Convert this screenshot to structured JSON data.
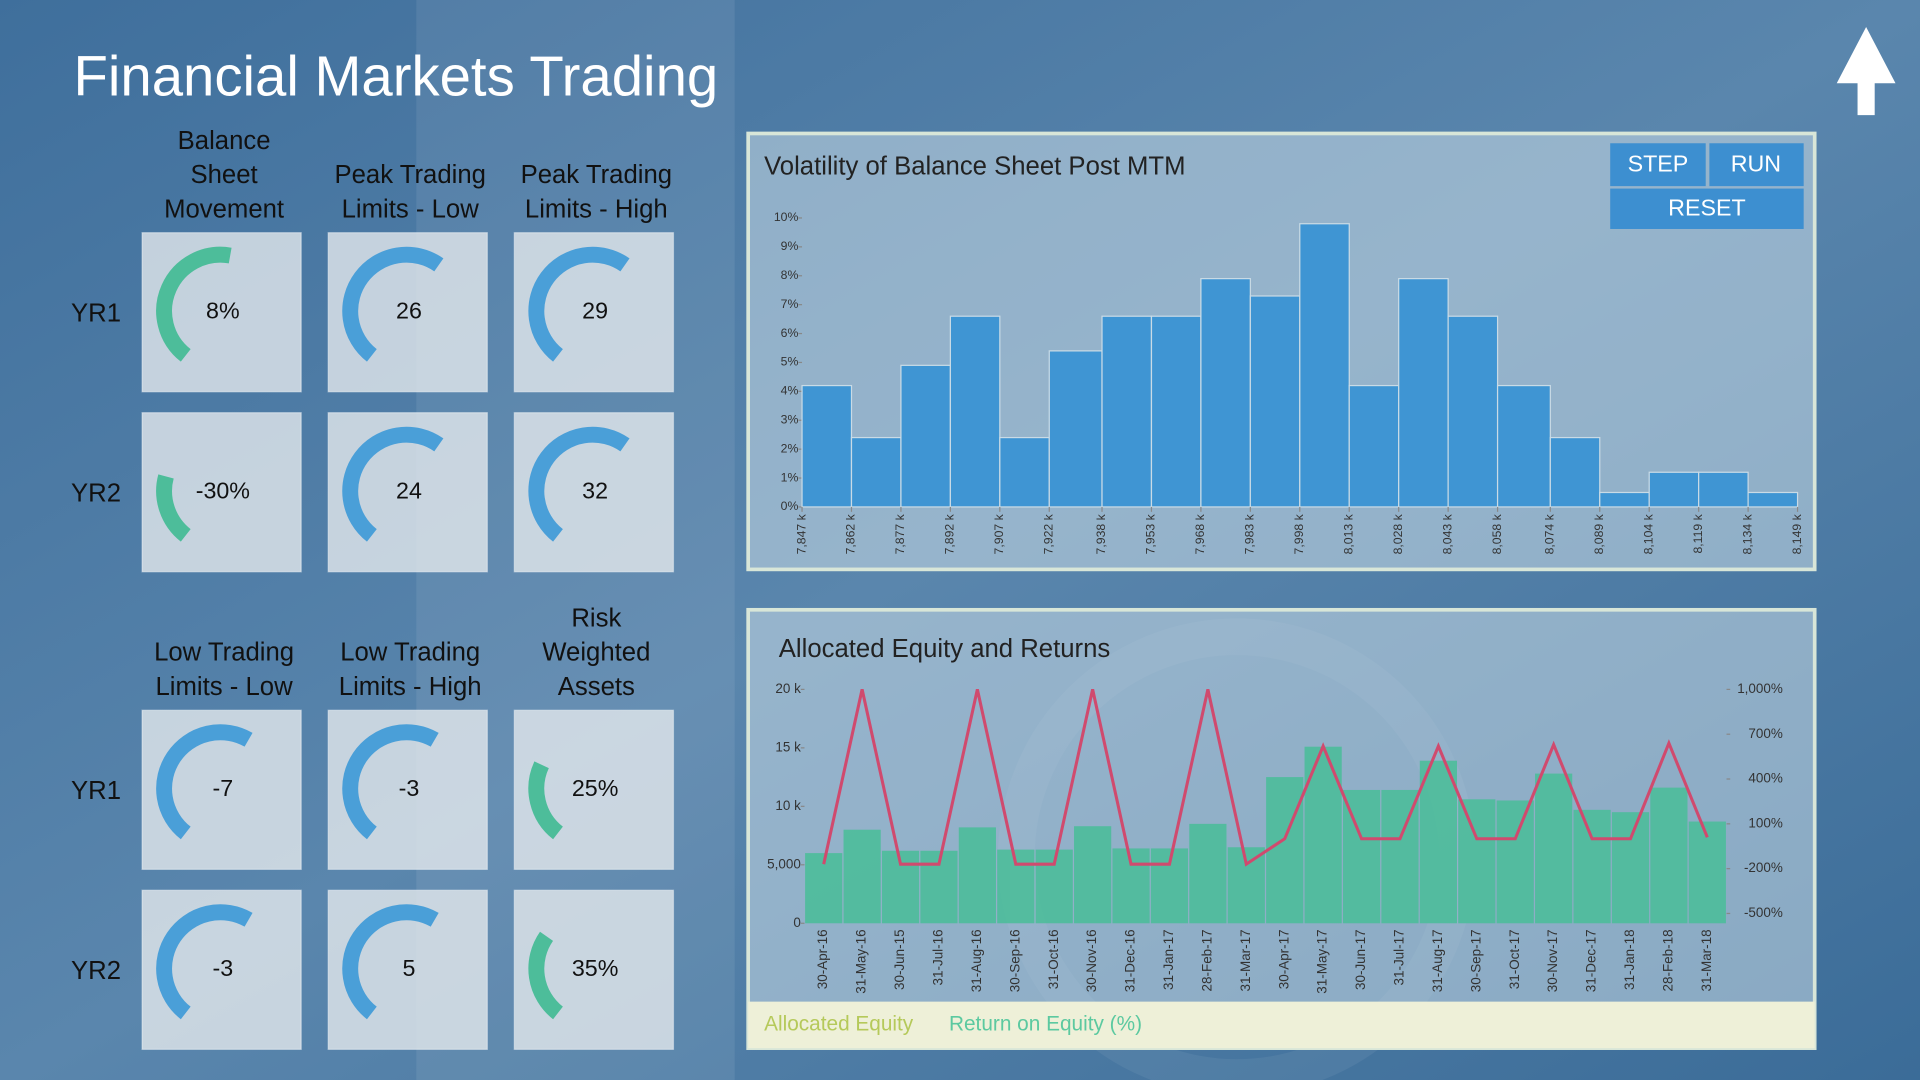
{
  "title": "Financial  Markets Trading",
  "buttons": [
    "STEP",
    "RUN",
    "RESET"
  ],
  "gauges": [
    {
      "headers": [
        [
          "Balance",
          "Sheet",
          "Movement"
        ],
        [
          "Peak Trading",
          "Limits - Low"
        ],
        [
          "Peak Trading",
          "Limits - High"
        ]
      ],
      "colors": [
        "#4dbd9a",
        "#4a9fd8",
        "#4a9fd8"
      ],
      "rows": [
        {
          "label": "YR1",
          "values": [
            "8%",
            "26",
            "29"
          ]
        },
        {
          "label": "YR2",
          "values": [
            "-30%",
            "24",
            "32"
          ]
        }
      ]
    },
    {
      "headers": [
        [
          "Low Trading",
          "Limits - Low"
        ],
        [
          "Low Trading",
          "Limits - High"
        ],
        [
          "Risk",
          "Weighted",
          "Assets"
        ]
      ],
      "colors": [
        "#4a9fd8",
        "#4a9fd8",
        "#4dbd9a"
      ],
      "rows": [
        {
          "label": "YR1",
          "values": [
            "-7",
            "-3",
            "25%"
          ]
        },
        {
          "label": "YR2",
          "values": [
            "-3",
            "5",
            "35%"
          ]
        }
      ]
    }
  ],
  "chart_data": [
    {
      "type": "histogram",
      "title": "Volatility of Balance Sheet Post MTM",
      "color": "#3f95d3",
      "bins": [
        7847,
        7862,
        7877,
        7892,
        7907,
        7922,
        7938,
        7953,
        7968,
        7983,
        7998,
        8013,
        8028,
        8043,
        8058,
        8074,
        8089,
        8104,
        8119,
        8134,
        8149
      ],
      "values": [
        4.2,
        2.4,
        4.9,
        6.6,
        2.4,
        5.4,
        6.6,
        6.6,
        7.9,
        7.3,
        9.8,
        4.2,
        7.9,
        6.6,
        4.2,
        2.4,
        0.5,
        1.2,
        1.2,
        0.5
      ],
      "xlim": [
        7847,
        8149
      ],
      "xticks": [
        {
          "value": 7847,
          "label": "7,847 k"
        },
        {
          "value": 7862,
          "label": "7,862 k"
        },
        {
          "value": 7877,
          "label": "7,877 k"
        },
        {
          "value": 7892,
          "label": "7,892 k"
        },
        {
          "value": 7907,
          "label": "7,907 k"
        },
        {
          "value": 7922,
          "label": "7,922 k"
        },
        {
          "value": 7938,
          "label": "7,938 k"
        },
        {
          "value": 7953,
          "label": "7,953 k"
        },
        {
          "value": 7968,
          "label": "7,968 k"
        },
        {
          "value": 7983,
          "label": "7,983 k"
        },
        {
          "value": 7998,
          "label": "7,998 k"
        },
        {
          "value": 8013,
          "label": "8,013 k"
        },
        {
          "value": 8028,
          "label": "8,028 k"
        },
        {
          "value": 8043,
          "label": "8,043 k"
        },
        {
          "value": 8058,
          "label": "8,058 k"
        },
        {
          "value": 8074,
          "label": "8,074 k"
        },
        {
          "value": 8089,
          "label": "8,089 k"
        },
        {
          "value": 8104,
          "label": "8,104 k"
        },
        {
          "value": 8119,
          "label": "8,119 k"
        },
        {
          "value": 8134,
          "label": "8,134 k"
        },
        {
          "value": 8149,
          "label": "8,149 k"
        }
      ],
      "ylim": [
        0,
        10
      ],
      "yticks": [
        {
          "value": 0,
          "label": "0%"
        },
        {
          "value": 1,
          "label": "1%"
        },
        {
          "value": 2,
          "label": "2%"
        },
        {
          "value": 3,
          "label": "3%"
        },
        {
          "value": 4,
          "label": "4%"
        },
        {
          "value": 5,
          "label": "5%"
        },
        {
          "value": 6,
          "label": "6%"
        },
        {
          "value": 7,
          "label": "7%"
        },
        {
          "value": 8,
          "label": "8%"
        },
        {
          "value": 9,
          "label": "9%"
        },
        {
          "value": 10,
          "label": "10%"
        }
      ]
    },
    {
      "type": "combo",
      "title": "Allocated Equity and Returns",
      "categories": [
        "30-Apr-16",
        "31-May-16",
        "30-Jun-15",
        "31-Jul-16",
        "31-Aug-16",
        "30-Sep-16",
        "31-Oct-16",
        "30-Nov-16",
        "31-Dec-16",
        "31-Jan-17",
        "28-Feb-17",
        "31-Mar-17",
        "30-Apr-17",
        "31-May-17",
        "30-Jun-17",
        "31-Jul-17",
        "31-Aug-17",
        "30-Sep-17",
        "31-Oct-17",
        "30-Nov-17",
        "31-Dec-17",
        "31-Jan-18",
        "28-Feb-18",
        "31-Mar-18"
      ],
      "series": [
        {
          "name": "Allocated Equity",
          "type": "bar",
          "color": "#4dbd9a",
          "values": [
            6000,
            8000,
            6200,
            6200,
            8200,
            6300,
            6300,
            8300,
            6400,
            6400,
            8500,
            6500,
            12500,
            15100,
            11400,
            11400,
            13900,
            10600,
            10500,
            12800,
            9700,
            9500,
            11600,
            8700
          ]
        },
        {
          "name": "Return on Equity (%)",
          "type": "line",
          "axis": "y2",
          "color": "#d04a6e",
          "values": [
            -170,
            1000,
            -170,
            -170,
            1000,
            -170,
            -170,
            1000,
            -170,
            -170,
            1000,
            -170,
            0,
            620,
            0,
            0,
            620,
            0,
            0,
            630,
            0,
            0,
            640,
            10
          ]
        }
      ],
      "ylim": [
        0,
        20000
      ],
      "yticks": [
        0,
        {
          "value": 5000,
          "label": "5,000"
        },
        {
          "value": 10000,
          "label": "10 k"
        },
        {
          "value": 15000,
          "label": "15 k"
        },
        {
          "value": 20000,
          "label": "20 k"
        }
      ],
      "y2lim": [
        -500,
        1000
      ],
      "y2ticks": [
        {
          "value": -500,
          "label": "-500%"
        },
        {
          "value": -200,
          "label": "-200%"
        },
        {
          "value": 100,
          "label": "100%"
        },
        {
          "value": 400,
          "label": "400%"
        },
        {
          "value": 700,
          "label": "700%"
        },
        {
          "value": 1000,
          "label": "1,000%"
        }
      ]
    }
  ]
}
